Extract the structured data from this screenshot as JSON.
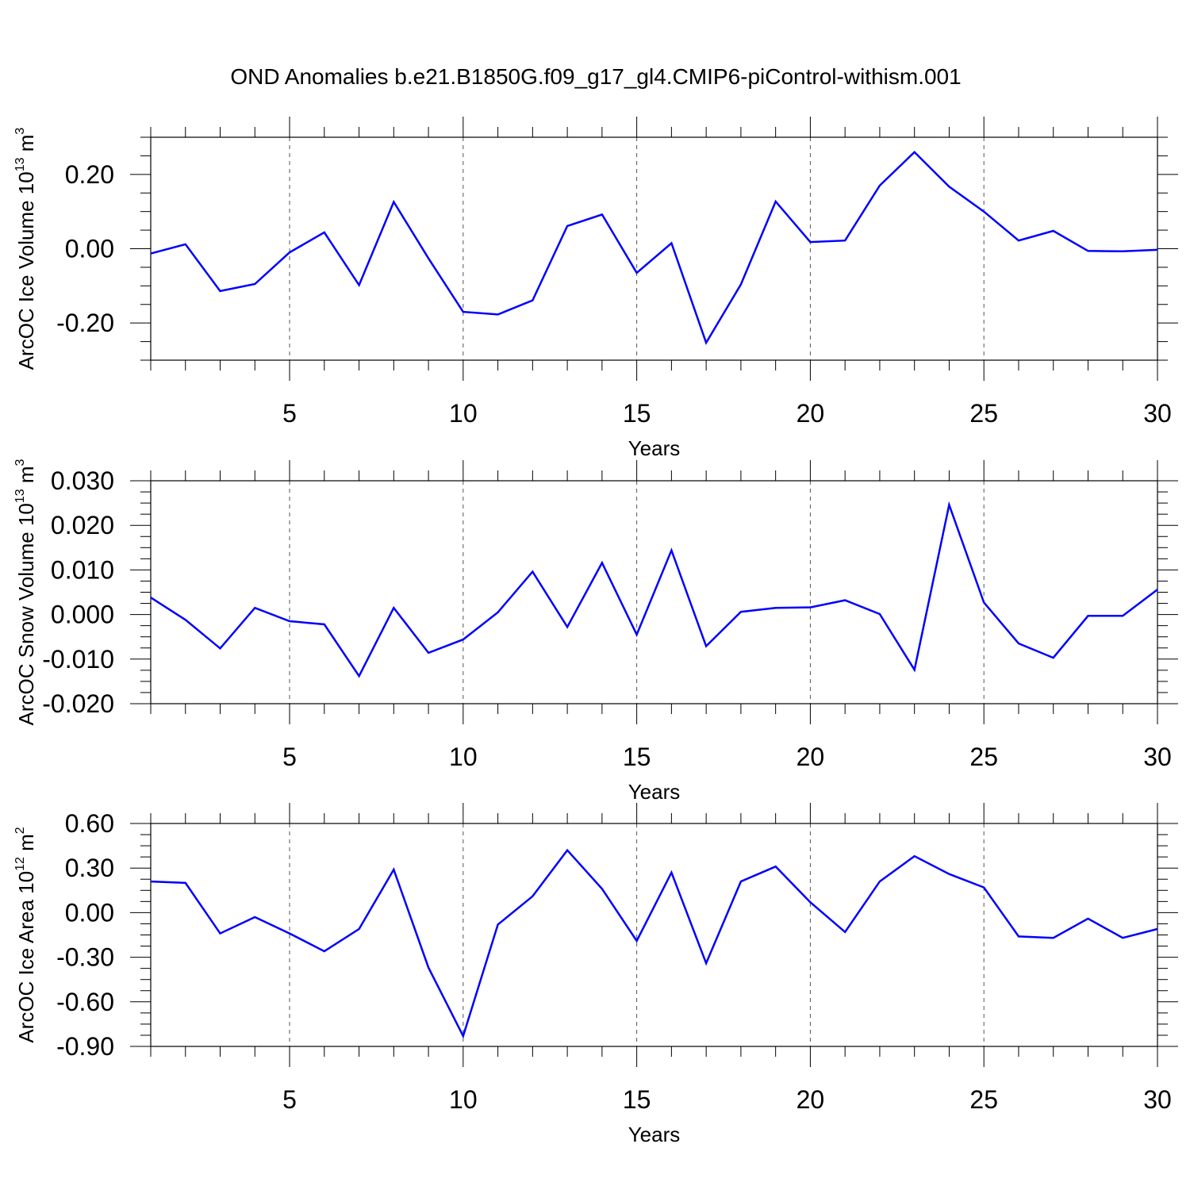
{
  "title": "OND Anomalies b.e21.B1850G.f09_g17_gl4.CMIP6-piControl-withism.001",
  "chart_data": [
    {
      "type": "line",
      "ylabel": {
        "prefix": "ArcOC Ice Volume 10",
        "exp": "13",
        "unit": " m",
        "unit_exp": "3"
      },
      "xlabel": "Years",
      "xlim": [
        1,
        30
      ],
      "ylim": [
        -0.3,
        0.3
      ],
      "yticks": [
        -0.2,
        0.0,
        0.2
      ],
      "ytick_labels": [
        "-0.20",
        "0.00",
        "0.20"
      ],
      "xticks": [
        5,
        10,
        15,
        20,
        25,
        30
      ],
      "xtick_labels": [
        "5",
        "10",
        "15",
        "20",
        "25",
        "30"
      ],
      "grid_x": true,
      "color": "#0000ff",
      "x": [
        1,
        2,
        3,
        4,
        5,
        6,
        7,
        8,
        9,
        10,
        11,
        12,
        13,
        14,
        15,
        16,
        17,
        18,
        19,
        20,
        21,
        22,
        23,
        24,
        25,
        26,
        27,
        28,
        29,
        30
      ],
      "values": [
        -0.013,
        0.012,
        -0.114,
        -0.095,
        -0.01,
        0.044,
        -0.098,
        0.126,
        -0.026,
        -0.17,
        -0.177,
        -0.139,
        0.061,
        0.092,
        -0.065,
        0.015,
        -0.253,
        -0.096,
        0.127,
        0.018,
        0.022,
        0.17,
        0.26,
        0.167,
        0.1,
        0.022,
        0.048,
        -0.006,
        -0.007,
        -0.003
      ]
    },
    {
      "type": "line",
      "ylabel": {
        "prefix": "ArcOC Snow Volume 10",
        "exp": "13",
        "unit": " m",
        "unit_exp": "3"
      },
      "xlabel": "Years",
      "xlim": [
        1,
        30
      ],
      "ylim": [
        -0.02,
        0.03
      ],
      "yticks": [
        -0.02,
        -0.01,
        0.0,
        0.01,
        0.02,
        0.03
      ],
      "ytick_labels": [
        "-0.020",
        "-0.010",
        "0.000",
        "0.010",
        "0.020",
        "0.030"
      ],
      "xticks": [
        5,
        10,
        15,
        20,
        25,
        30
      ],
      "xtick_labels": [
        "5",
        "10",
        "15",
        "20",
        "25",
        "30"
      ],
      "grid_x": true,
      "color": "#0000ff",
      "x": [
        1,
        2,
        3,
        4,
        5,
        6,
        7,
        8,
        9,
        10,
        11,
        12,
        13,
        14,
        15,
        16,
        17,
        18,
        19,
        20,
        21,
        22,
        23,
        24,
        25,
        26,
        27,
        28,
        29,
        30
      ],
      "values": [
        0.0038,
        -0.0012,
        -0.0076,
        0.0015,
        -0.0015,
        -0.0022,
        -0.0138,
        0.0015,
        -0.0086,
        -0.0056,
        0.0005,
        0.0096,
        -0.0028,
        0.0116,
        -0.0045,
        0.0144,
        -0.0071,
        0.0006,
        0.0015,
        0.0016,
        0.0032,
        0.0001,
        -0.0124,
        0.0246,
        0.0027,
        -0.0065,
        -0.0097,
        -0.0003,
        -0.0003,
        0.0056
      ]
    },
    {
      "type": "line",
      "ylabel": {
        "prefix": "ArcOC Ice Area 10",
        "exp": "12",
        "unit": " m",
        "unit_exp": "2"
      },
      "xlabel": "Years",
      "xlim": [
        1,
        30
      ],
      "ylim": [
        -0.9,
        0.6
      ],
      "yticks": [
        -0.9,
        -0.6,
        -0.3,
        0.0,
        0.3,
        0.6
      ],
      "ytick_labels": [
        "-0.90",
        "-0.60",
        "-0.30",
        "0.00",
        "0.30",
        "0.60"
      ],
      "xticks": [
        5,
        10,
        15,
        20,
        25,
        30
      ],
      "xtick_labels": [
        "5",
        "10",
        "15",
        "20",
        "25",
        "30"
      ],
      "grid_x": true,
      "color": "#0000ff",
      "x": [
        1,
        2,
        3,
        4,
        5,
        6,
        7,
        8,
        9,
        10,
        11,
        12,
        13,
        14,
        15,
        16,
        17,
        18,
        19,
        20,
        21,
        22,
        23,
        24,
        25,
        26,
        27,
        28,
        29,
        30
      ],
      "values": [
        0.21,
        0.2,
        -0.14,
        -0.03,
        -0.14,
        -0.26,
        -0.11,
        0.29,
        -0.37,
        -0.83,
        -0.08,
        0.11,
        0.42,
        0.16,
        -0.19,
        0.27,
        -0.34,
        0.21,
        0.31,
        0.07,
        -0.13,
        0.21,
        0.38,
        0.26,
        0.17,
        -0.16,
        -0.17,
        -0.04,
        -0.17,
        -0.11
      ]
    }
  ]
}
